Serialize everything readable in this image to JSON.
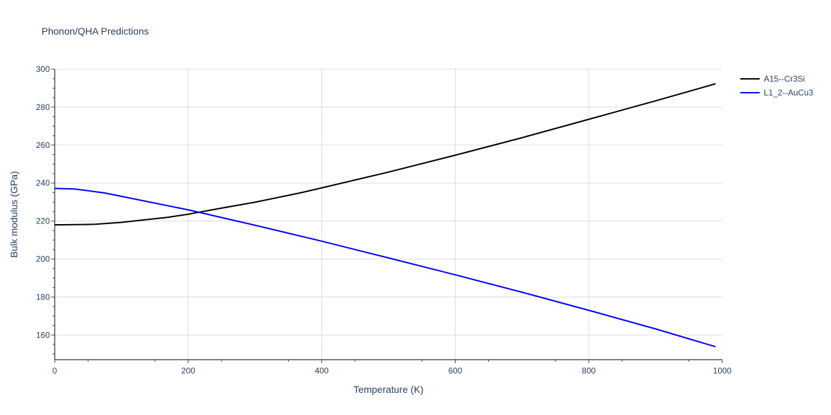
{
  "chart_data": {
    "type": "line",
    "title": "Phonon/QHA Predictions",
    "xlabel": "Temperature (K)",
    "ylabel": "Bulk modulus (GPa)",
    "xlim": [
      0,
      1000
    ],
    "ylim": [
      147,
      300
    ],
    "xticks": [
      0,
      200,
      400,
      600,
      800,
      1000
    ],
    "yticks": [
      160,
      180,
      200,
      220,
      240,
      260,
      280,
      300
    ],
    "grid": true,
    "legend_position": "top-right",
    "series": [
      {
        "name": "A15--Cr3Si",
        "color": "#000000",
        "x": [
          0,
          30,
          60,
          100,
          170,
          200,
          250,
          300,
          370,
          400,
          500,
          600,
          700,
          800,
          900,
          990
        ],
        "y": [
          218.0,
          218.1,
          218.3,
          219.3,
          222.0,
          223.6,
          226.8,
          229.9,
          235.0,
          237.5,
          245.8,
          254.7,
          263.9,
          273.6,
          283.3,
          292.3
        ]
      },
      {
        "name": "L1_2--AuCu3",
        "color": "#0000ff",
        "x": [
          0,
          30,
          75,
          100,
          200,
          300,
          400,
          500,
          600,
          700,
          800,
          900,
          990
        ],
        "y": [
          237.2,
          236.9,
          234.8,
          233.0,
          225.9,
          217.8,
          209.4,
          200.6,
          191.7,
          182.5,
          173.0,
          163.2,
          153.8
        ]
      }
    ]
  }
}
